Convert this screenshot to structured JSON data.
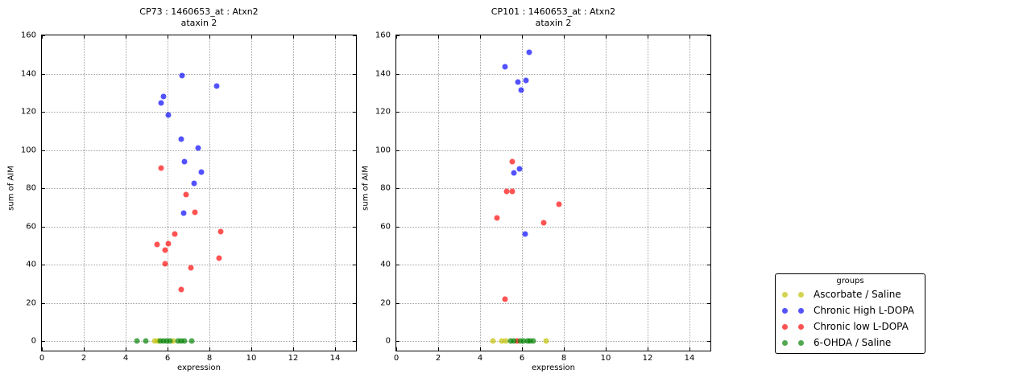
{
  "figure": {
    "background": "#ffffff"
  },
  "colors": {
    "ascorbate_saline": "#bfbf00",
    "chronic_high_ldopa": "#0000ff",
    "chronic_low_ldopa": "#ff0000",
    "ohda_saline": "#008000",
    "grid": "#a3a3a3",
    "axis": "#000000"
  },
  "legend": {
    "title": "groups",
    "entries": [
      {
        "label": "Ascorbate / Saline",
        "color": "#bfbf00"
      },
      {
        "label": "Chronic High L-DOPA",
        "color": "#0000ff"
      },
      {
        "label": "Chronic low L-DOPA",
        "color": "#ff0000"
      },
      {
        "label": "6-OHDA / Saline",
        "color": "#008000"
      }
    ]
  },
  "chart_data": [
    {
      "type": "scatter",
      "title_line1": "CP73 : 1460653_at : Atxn2",
      "title_line2": "ataxin 2",
      "xlabel": "expression",
      "ylabel": "sum of AIM",
      "xlim": [
        0,
        15
      ],
      "ylim": [
        -5,
        160
      ],
      "xticks": [
        0,
        2,
        4,
        6,
        8,
        10,
        12,
        14
      ],
      "yticks": [
        0,
        20,
        40,
        60,
        80,
        100,
        120,
        140,
        160
      ],
      "grid": "dotted",
      "series": [
        {
          "name": "Ascorbate / Saline",
          "color": "#bfbf00",
          "points": [
            [
              5.4,
              0
            ],
            [
              5.55,
              0
            ],
            [
              6.25,
              0
            ]
          ]
        },
        {
          "name": "Chronic High L-DOPA",
          "color": "#0000ff",
          "points": [
            [
              6.7,
              139
            ],
            [
              8.35,
              133.5
            ],
            [
              5.8,
              128
            ],
            [
              5.7,
              124.5
            ],
            [
              6.05,
              118.5
            ],
            [
              6.65,
              105.5
            ],
            [
              7.45,
              101
            ],
            [
              6.8,
              94
            ],
            [
              7.6,
              88.5
            ],
            [
              7.25,
              82.5
            ],
            [
              6.75,
              67
            ]
          ]
        },
        {
          "name": "Chronic low L-DOPA",
          "color": "#ff0000",
          "points": [
            [
              5.7,
              90.5
            ],
            [
              6.9,
              76.5
            ],
            [
              7.3,
              67.5
            ],
            [
              8.55,
              57.5
            ],
            [
              6.35,
              56
            ],
            [
              6.05,
              51
            ],
            [
              5.5,
              50.5
            ],
            [
              5.9,
              47.5
            ],
            [
              8.45,
              43.5
            ],
            [
              5.9,
              40.5
            ],
            [
              7.1,
              38.5
            ],
            [
              6.65,
              27
            ]
          ]
        },
        {
          "name": "6-OHDA / Saline",
          "color": "#008000",
          "points": [
            [
              4.55,
              0
            ],
            [
              4.95,
              0
            ],
            [
              5.65,
              0
            ],
            [
              5.8,
              0
            ],
            [
              5.95,
              0
            ],
            [
              6.1,
              0
            ],
            [
              6.5,
              0
            ],
            [
              6.65,
              0
            ],
            [
              6.8,
              0
            ],
            [
              7.15,
              0
            ]
          ]
        }
      ]
    },
    {
      "type": "scatter",
      "title_line1": "CP101 : 1460653_at : Atxn2",
      "title_line2": "ataxin 2",
      "xlabel": "expression",
      "ylabel": "sum of AIM",
      "xlim": [
        0,
        15
      ],
      "ylim": [
        -5,
        160
      ],
      "xticks": [
        0,
        2,
        4,
        6,
        8,
        10,
        12,
        14
      ],
      "yticks": [
        0,
        20,
        40,
        60,
        80,
        100,
        120,
        140,
        160
      ],
      "grid": "dotted",
      "series": [
        {
          "name": "Ascorbate / Saline",
          "color": "#bfbf00",
          "points": [
            [
              4.62,
              0
            ],
            [
              5.04,
              0
            ],
            [
              5.22,
              0
            ],
            [
              7.15,
              0
            ]
          ]
        },
        {
          "name": "Chronic High L-DOPA",
          "color": "#0000ff",
          "points": [
            [
              6.35,
              151
            ],
            [
              5.2,
              143.5
            ],
            [
              6.2,
              136.5
            ],
            [
              5.8,
              135.5
            ],
            [
              5.95,
              131.5
            ],
            [
              5.9,
              90
            ],
            [
              5.6,
              88
            ],
            [
              6.15,
              56
            ]
          ]
        },
        {
          "name": "Chronic low L-DOPA",
          "color": "#ff0000",
          "points": [
            [
              5.55,
              94
            ],
            [
              5.25,
              78.5
            ],
            [
              5.55,
              78.5
            ],
            [
              7.75,
              71.5
            ],
            [
              4.8,
              64.5
            ],
            [
              7.05,
              62
            ],
            [
              5.2,
              22
            ],
            [
              5.77,
              0
            ]
          ]
        },
        {
          "name": "6-OHDA / Saline",
          "color": "#008000",
          "points": [
            [
              5.45,
              0
            ],
            [
              5.61,
              0
            ],
            [
              5.94,
              0
            ],
            [
              6.09,
              0
            ],
            [
              6.25,
              0
            ],
            [
              6.38,
              0
            ],
            [
              6.52,
              0
            ]
          ]
        }
      ]
    }
  ]
}
